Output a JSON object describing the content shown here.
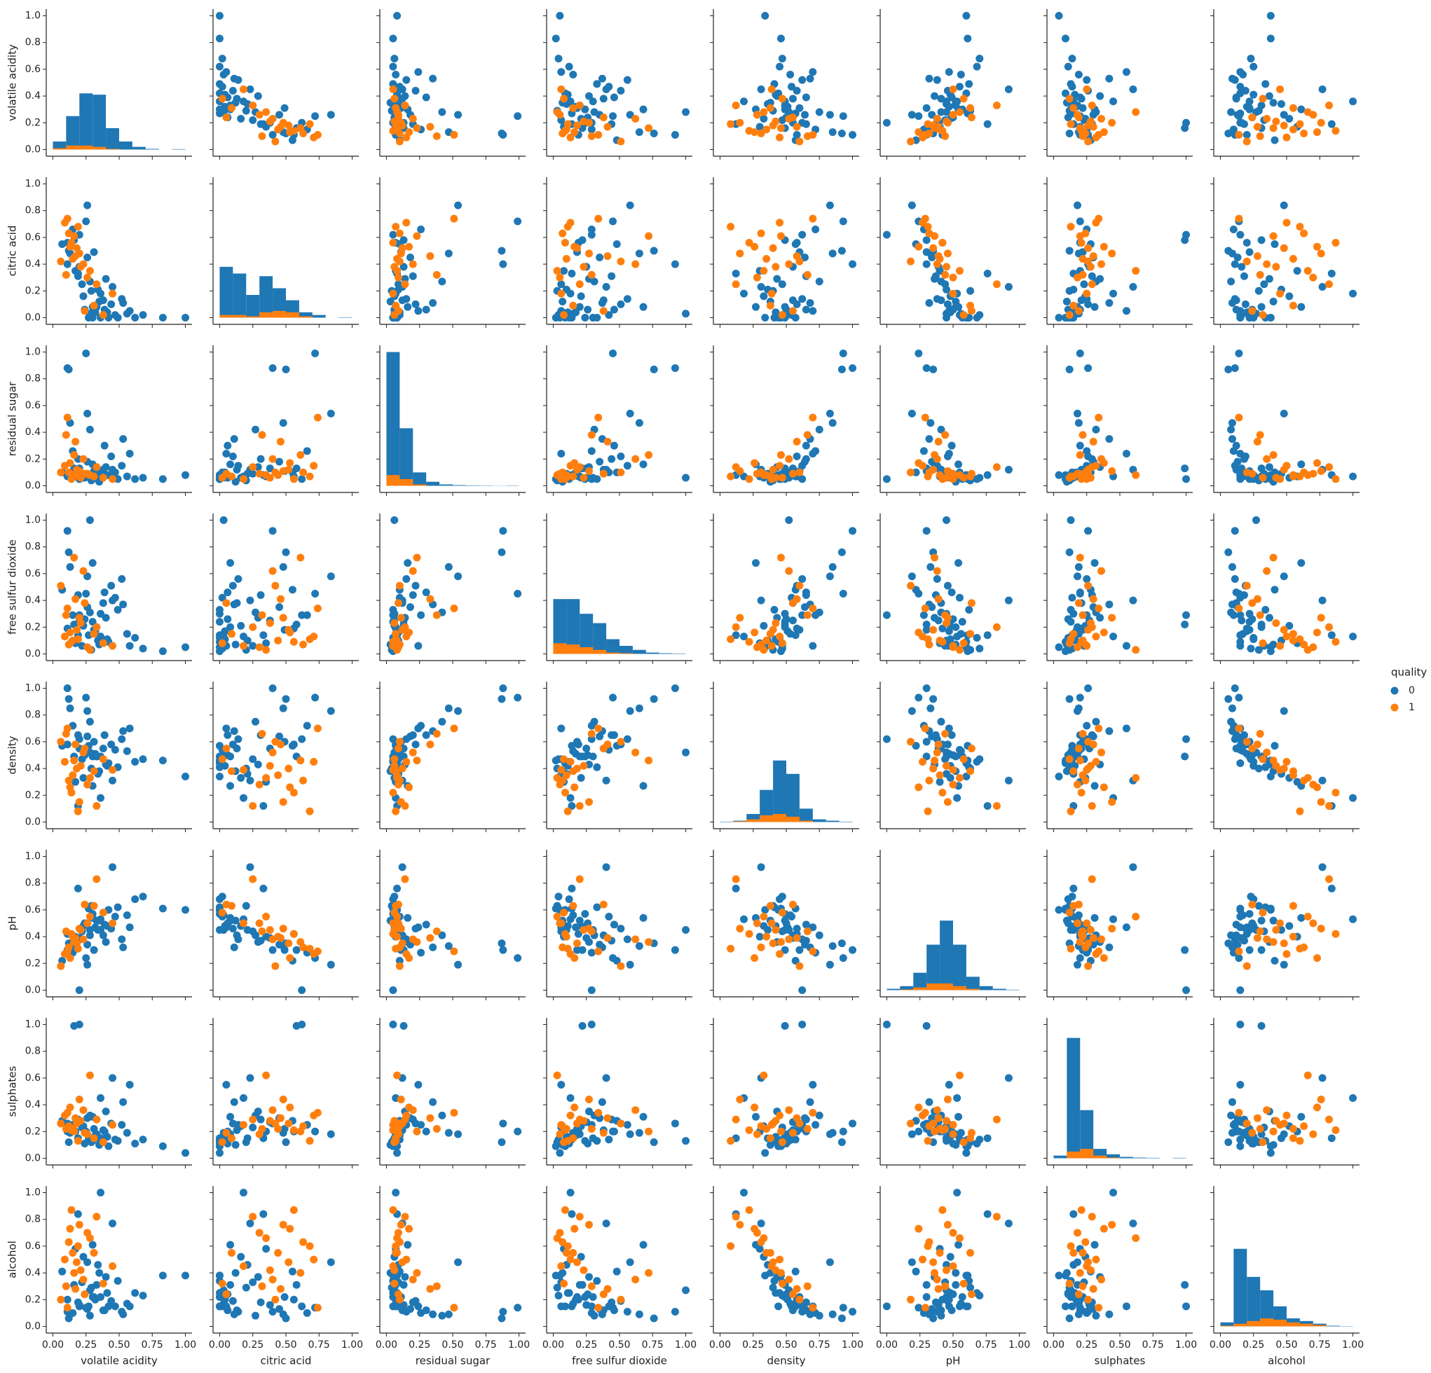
{
  "chart_data": {
    "type": "pairplot",
    "variables": [
      "volatile acidity",
      "citric acid",
      "residual sugar",
      "free sulfur dioxide",
      "density",
      "pH",
      "sulphates",
      "alcohol"
    ],
    "legend_title": "quality",
    "legend": "right",
    "xlim": [
      -0.05,
      1.05
    ],
    "ylim": [
      -0.05,
      1.05
    ],
    "xticks": [
      {
        "value": 0,
        "label": "0.00"
      },
      {
        "value": 0.25,
        "label": "0.25"
      },
      {
        "value": 0.5,
        "label": "0.50"
      },
      {
        "value": 0.75,
        "label": "0.75"
      },
      {
        "value": 1,
        "label": "1.00"
      }
    ],
    "yticks": [
      {
        "value": 0,
        "label": "0.0"
      },
      {
        "value": 0.2,
        "label": "0.2"
      },
      {
        "value": 0.4,
        "label": "0.4"
      },
      {
        "value": 0.6,
        "label": "0.6"
      },
      {
        "value": 0.8,
        "label": "0.8"
      },
      {
        "value": 1,
        "label": "1.0"
      }
    ],
    "bins": [
      0,
      0.1,
      0.2,
      0.3,
      0.4,
      0.5,
      0.6,
      0.7,
      0.8,
      0.9,
      1.0
    ],
    "series": [
      {
        "name": "0",
        "color": "#1f77b4",
        "hist": [
          [
            0.06,
            0.25,
            0.42,
            0.41,
            0.16,
            0.06,
            0.02,
            0.005,
            0,
            0.003
          ],
          [
            0.38,
            0.33,
            0.17,
            0.31,
            0.22,
            0.13,
            0.04,
            0.02,
            0,
            0.003
          ],
          [
            1.0,
            0.43,
            0.1,
            0.03,
            0.01,
            0.005,
            0.003,
            0.002,
            0.001,
            0.002
          ],
          [
            0.41,
            0.41,
            0.3,
            0.23,
            0.11,
            0.06,
            0.03,
            0.01,
            0.005,
            0.003
          ],
          [
            0.003,
            0.01,
            0.06,
            0.24,
            0.46,
            0.36,
            0.1,
            0.02,
            0.01,
            0.003
          ],
          [
            0.01,
            0.03,
            0.13,
            0.34,
            0.52,
            0.34,
            0.1,
            0.03,
            0.01,
            0.003
          ],
          [
            0.02,
            0.9,
            0.36,
            0.07,
            0.03,
            0.01,
            0.005,
            0.003,
            0,
            0.003
          ],
          [
            0.03,
            0.58,
            0.37,
            0.27,
            0.15,
            0.06,
            0.04,
            0.02,
            0.005,
            0.002
          ]
        ],
        "values": [
          [
            0.27,
            0.0,
            0.07,
            0.14,
            0.57,
            0.61,
            0.14,
            0.15
          ],
          [
            0.36,
            0.0,
            0.06,
            0.3,
            0.49,
            0.45,
            0.15,
            0.22
          ],
          [
            0.32,
            0.04,
            0.1,
            0.17,
            0.51,
            0.47,
            0.17,
            0.2
          ],
          [
            0.11,
            0.56,
            0.07,
            0.19,
            0.58,
            0.42,
            0.2,
            0.2
          ],
          [
            0.3,
            0.0,
            0.05,
            0.24,
            0.49,
            0.57,
            0.13,
            0.22
          ],
          [
            0.24,
            0.06,
            0.06,
            0.26,
            0.5,
            0.5,
            0.11,
            0.24
          ],
          [
            0.42,
            0.0,
            0.08,
            0.09,
            0.44,
            0.6,
            0.09,
            0.15
          ],
          [
            0.41,
            0.04,
            0.08,
            0.11,
            0.42,
            0.48,
            0.16,
            0.25
          ],
          [
            0.33,
            0.08,
            0.07,
            0.2,
            0.49,
            0.52,
            0.18,
            0.31
          ],
          [
            0.38,
            0.13,
            0.12,
            0.38,
            0.55,
            0.41,
            0.21,
            0.12
          ],
          [
            0.47,
            0.02,
            0.1,
            0.42,
            0.54,
            0.55,
            0.14,
            0.15
          ],
          [
            0.52,
            0.14,
            0.15,
            0.56,
            0.62,
            0.38,
            0.25,
            0.11
          ],
          [
            0.22,
            0.25,
            0.09,
            0.06,
            0.47,
            0.44,
            0.23,
            0.33
          ],
          [
            0.19,
            0.31,
            0.2,
            0.44,
            0.65,
            0.37,
            0.29,
            0.18
          ],
          [
            0.29,
            0.2,
            0.04,
            0.03,
            0.4,
            0.63,
            0.12,
            0.29
          ],
          [
            0.35,
            0.12,
            0.03,
            0.07,
            0.38,
            0.52,
            0.1,
            0.4
          ],
          [
            0.56,
            0.03,
            0.07,
            0.15,
            0.53,
            0.56,
            0.19,
            0.17
          ],
          [
            0.62,
            0.0,
            0.05,
            0.12,
            0.45,
            0.68,
            0.11,
            0.25
          ],
          [
            0.26,
            0.45,
            0.18,
            0.35,
            0.64,
            0.34,
            0.3,
            0.13
          ],
          [
            0.2,
            0.38,
            0.13,
            0.25,
            0.55,
            0.39,
            0.27,
            0.16
          ],
          [
            0.31,
            0.49,
            0.11,
            0.18,
            0.6,
            0.3,
            0.22,
            0.22
          ],
          [
            0.15,
            0.66,
            0.26,
            0.29,
            0.72,
            0.28,
            0.25,
            0.1
          ],
          [
            0.44,
            0.1,
            0.22,
            0.51,
            0.58,
            0.46,
            0.26,
            0.19
          ],
          [
            0.39,
            0.06,
            0.3,
            0.46,
            0.65,
            0.49,
            0.2,
            0.12
          ],
          [
            0.28,
            0.27,
            0.42,
            0.31,
            0.75,
            0.41,
            0.32,
            0.08
          ],
          [
            0.49,
            0.0,
            0.05,
            0.33,
            0.41,
            0.62,
            0.13,
            0.34
          ],
          [
            0.34,
            0.21,
            0.09,
            0.1,
            0.36,
            0.45,
            0.15,
            0.46
          ],
          [
            0.23,
            0.16,
            0.06,
            0.21,
            0.33,
            0.48,
            0.24,
            0.52
          ],
          [
            0.17,
            0.35,
            0.07,
            0.08,
            0.3,
            0.4,
            0.2,
            0.58
          ],
          [
            0.4,
            0.29,
            0.14,
            0.27,
            0.43,
            0.36,
            0.35,
            0.37
          ],
          [
            0.68,
            0.02,
            0.06,
            0.04,
            0.47,
            0.7,
            0.14,
            0.23
          ],
          [
            0.83,
            0.0,
            0.05,
            0.02,
            0.46,
            0.61,
            0.09,
            0.38
          ],
          [
            1.0,
            0.0,
            0.08,
            0.05,
            0.34,
            0.6,
            0.04,
            0.38
          ],
          [
            0.13,
            0.48,
            0.47,
            0.65,
            0.85,
            0.33,
            0.19,
            0.09
          ],
          [
            0.11,
            0.4,
            0.88,
            0.92,
            1.0,
            0.3,
            0.26,
            0.11
          ],
          [
            0.12,
            0.5,
            0.87,
            0.76,
            0.92,
            0.35,
            0.12,
            0.06
          ],
          [
            0.28,
            0.03,
            0.06,
            1.0,
            0.52,
            0.45,
            0.13,
            0.27
          ],
          [
            0.25,
            0.72,
            0.99,
            0.45,
            0.93,
            0.24,
            0.2,
            0.14
          ],
          [
            0.16,
            0.58,
            0.13,
            0.22,
            0.49,
            0.3,
            0.99,
            0.31
          ],
          [
            0.2,
            0.62,
            0.05,
            0.29,
            0.62,
            0.0,
            1.0,
            0.15
          ],
          [
            0.26,
            0.84,
            0.54,
            0.58,
            0.83,
            0.19,
            0.18,
            0.48
          ],
          [
            0.36,
            0.18,
            0.07,
            0.13,
            0.18,
            0.53,
            0.45,
            1.0
          ],
          [
            0.58,
            0.05,
            0.24,
            0.06,
            0.7,
            0.47,
            0.55,
            0.15
          ],
          [
            0.45,
            0.23,
            0.12,
            0.4,
            0.31,
            0.92,
            0.6,
            0.77
          ],
          [
            0.3,
            0.08,
            0.16,
            0.68,
            0.27,
            0.54,
            0.31,
            0.61
          ],
          [
            0.19,
            0.33,
            0.08,
            0.14,
            0.12,
            0.76,
            0.15,
            0.84
          ],
          [
            0.53,
            0.11,
            0.35,
            0.37,
            0.68,
            0.32,
            0.42,
            0.09
          ],
          [
            0.07,
            0.55,
            0.1,
            0.48,
            0.57,
            0.22,
            0.28,
            0.41
          ]
        ]
      },
      {
        "name": "1",
        "color": "#ff7f0e",
        "hist": [
          [
            0.01,
            0.03,
            0.03,
            0.02,
            0.005,
            0,
            0,
            0,
            0,
            0
          ],
          [
            0.02,
            0.02,
            0.01,
            0.04,
            0.05,
            0.04,
            0.01,
            0,
            0,
            0
          ],
          [
            0.08,
            0.05,
            0.01,
            0,
            0,
            0,
            0,
            0,
            0,
            0
          ],
          [
            0.08,
            0.07,
            0.05,
            0.03,
            0.01,
            0.005,
            0,
            0,
            0,
            0
          ],
          [
            0,
            0.005,
            0.02,
            0.05,
            0.06,
            0.04,
            0.01,
            0,
            0,
            0
          ],
          [
            0,
            0.005,
            0.02,
            0.05,
            0.05,
            0.03,
            0.01,
            0,
            0,
            0
          ],
          [
            0,
            0.05,
            0.07,
            0.02,
            0.005,
            0,
            0,
            0,
            0,
            0
          ],
          [
            0.005,
            0.02,
            0.04,
            0.06,
            0.05,
            0.03,
            0.02,
            0.01,
            0,
            0
          ]
        ],
        "values": [
          [
            0.15,
            0.44,
            0.08,
            0.1,
            0.35,
            0.4,
            0.22,
            0.55
          ],
          [
            0.18,
            0.52,
            0.12,
            0.18,
            0.4,
            0.35,
            0.26,
            0.48
          ],
          [
            0.12,
            0.63,
            0.1,
            0.07,
            0.31,
            0.32,
            0.24,
            0.63
          ],
          [
            0.21,
            0.38,
            0.06,
            0.23,
            0.42,
            0.45,
            0.28,
            0.42
          ],
          [
            0.09,
            0.71,
            0.15,
            0.13,
            0.45,
            0.27,
            0.32,
            0.5
          ],
          [
            0.26,
            0.3,
            0.09,
            0.05,
            0.28,
            0.5,
            0.18,
            0.7
          ],
          [
            0.17,
            0.46,
            0.33,
            0.41,
            0.58,
            0.39,
            0.3,
            0.28
          ],
          [
            0.31,
            0.09,
            0.07,
            0.15,
            0.38,
            0.63,
            0.15,
            0.55
          ],
          [
            0.14,
            0.56,
            0.05,
            0.09,
            0.22,
            0.42,
            0.21,
            0.87
          ],
          [
            0.23,
            0.4,
            0.2,
            0.62,
            0.52,
            0.38,
            0.36,
            0.35
          ],
          [
            0.38,
            0.02,
            0.06,
            0.08,
            0.47,
            0.58,
            0.12,
            0.32
          ],
          [
            0.11,
            0.74,
            0.51,
            0.34,
            0.7,
            0.29,
            0.34,
            0.14
          ],
          [
            0.2,
            0.48,
            0.11,
            0.27,
            0.15,
            0.46,
            0.44,
            0.76
          ],
          [
            0.28,
            0.35,
            0.08,
            0.03,
            0.33,
            0.55,
            0.62,
            0.66
          ],
          [
            0.06,
            0.42,
            0.1,
            0.51,
            0.6,
            0.18,
            0.26,
            0.2
          ],
          [
            0.16,
            0.61,
            0.23,
            0.72,
            0.46,
            0.36,
            0.2,
            0.4
          ],
          [
            0.33,
            0.25,
            0.14,
            0.2,
            0.12,
            0.83,
            0.29,
            0.82
          ],
          [
            0.19,
            0.68,
            0.07,
            0.11,
            0.08,
            0.31,
            0.13,
            0.6
          ],
          [
            0.24,
            0.05,
            0.09,
            0.38,
            0.55,
            0.64,
            0.19,
            0.24
          ],
          [
            0.13,
            0.53,
            0.17,
            0.16,
            0.26,
            0.24,
            0.38,
            0.73
          ],
          [
            0.45,
            0.18,
            0.05,
            0.06,
            0.39,
            0.5,
            0.25,
            0.45
          ],
          [
            0.1,
            0.32,
            0.38,
            0.29,
            0.66,
            0.44,
            0.22,
            0.3
          ]
        ]
      }
    ]
  }
}
